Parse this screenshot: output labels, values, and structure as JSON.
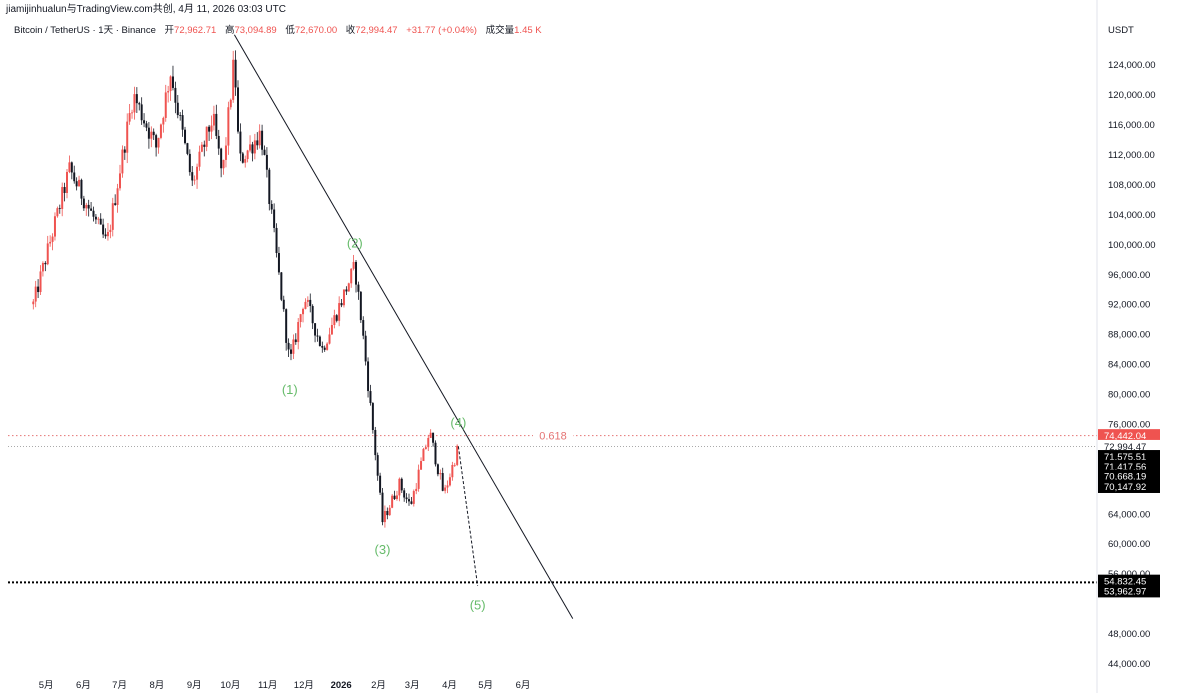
{
  "header": {
    "author": "jiamijinhualun与TradingView.com共创, 4月 11, 2026 03:03 UTC",
    "symbol": "Bitcoin / TetherUS · 1天 · Binance",
    "open_label": "开",
    "open": "72,962.71",
    "high_label": "高",
    "high": "73,094.89",
    "low_label": "低",
    "low": "72,670.00",
    "close_label": "收",
    "close": "72,994.47",
    "change": "+31.77 (+0.04%)",
    "volume_label": "成交量",
    "volume": "1.45 K",
    "currency": "USDT"
  },
  "colors": {
    "up": "#ef5350",
    "down": "#131722",
    "wave_label": "#66bb6a",
    "fib_line": "#e57373",
    "price_badge": "#ef5350",
    "label_badge": "#000000"
  },
  "chart_data": {
    "type": "candlestick",
    "y_axis_ticks": [
      "124,000.00",
      "120,000.00",
      "116,000.00",
      "112,000.00",
      "108,000.00",
      "104,000.00",
      "100,000.00",
      "96,000.00",
      "92,000.00",
      "88,000.00",
      "84,000.00",
      "80,000.00",
      "76,000.00",
      "64,000.00",
      "60,000.00",
      "56,000.00",
      "48,000.00",
      "44,000.00"
    ],
    "x_axis_ticks": [
      "5月",
      "6月",
      "7月",
      "8月",
      "9月",
      "10月",
      "11月",
      "12月",
      "2026",
      "2月",
      "3月",
      "4月",
      "5月",
      "6月"
    ],
    "ylim": [
      42000,
      128000
    ],
    "key_points": [
      {
        "date": "2025-04-22",
        "price": 92000
      },
      {
        "date": "2025-05-22",
        "price": 110000
      },
      {
        "date": "2025-06-22",
        "price": 100000
      },
      {
        "date": "2025-07-14",
        "price": 120000
      },
      {
        "date": "2025-08-02",
        "price": 113000
      },
      {
        "date": "2025-08-14",
        "price": 123000
      },
      {
        "date": "2025-09-01",
        "price": 108000
      },
      {
        "date": "2025-09-18",
        "price": 117000
      },
      {
        "date": "2025-09-26",
        "price": 109000
      },
      {
        "date": "2025-10-06",
        "price": 125000
      },
      {
        "date": "2025-10-10",
        "price": 111000
      },
      {
        "date": "2025-10-28",
        "price": 115000
      },
      {
        "date": "2025-11-08",
        "price": 101000
      },
      {
        "date": "2025-11-21",
        "price": 84000
      },
      {
        "date": "2025-12-03",
        "price": 93000
      },
      {
        "date": "2025-12-18",
        "price": 86000
      },
      {
        "date": "2026-01-14",
        "price": 97000
      },
      {
        "date": "2026-01-20",
        "price": 89000
      },
      {
        "date": "2026-02-06",
        "price": 63000
      },
      {
        "date": "2026-02-20",
        "price": 68000
      },
      {
        "date": "2026-03-01",
        "price": 65000
      },
      {
        "date": "2026-03-17",
        "price": 75000
      },
      {
        "date": "2026-03-29",
        "price": 66500
      },
      {
        "date": "2026-04-10",
        "price": 73000
      }
    ],
    "trendline": [
      {
        "date": "2025-10-06",
        "price": 128000
      },
      {
        "date": "2026-07-14",
        "price": 50000
      }
    ],
    "projection": [
      {
        "date": "2026-04-10",
        "price": 73000
      },
      {
        "date": "2026-04-26",
        "price": 54400
      }
    ],
    "fib_level": {
      "label": "0.618",
      "price": 74442.04
    },
    "wave_labels": [
      {
        "text": "(1)",
        "date": "2025-11-21",
        "price": 80000
      },
      {
        "text": "(2)",
        "date": "2026-01-14",
        "price": 99600
      },
      {
        "text": "(3)",
        "date": "2026-02-06",
        "price": 58600
      },
      {
        "text": "(4)",
        "date": "2026-04-10",
        "price": 75600
      },
      {
        "text": "(5)",
        "date": "2026-04-26",
        "price": 51200
      }
    ],
    "support_level": {
      "price": 54832.45
    },
    "price_badges": [
      {
        "text": "74,442.04",
        "kind": "price_badge",
        "price": 74442.04
      },
      {
        "text": "72,994.47",
        "kind": "current",
        "price": 73000
      },
      {
        "text": "71,575.51",
        "kind": "label_badge",
        "price": 71650
      },
      {
        "text": "71,417.56",
        "kind": "label_badge",
        "price": 70350
      },
      {
        "text": "70,668.19",
        "kind": "label_badge",
        "price": 69050
      },
      {
        "text": "70,147.92",
        "kind": "label_badge",
        "price": 67650
      },
      {
        "text": "54,832.45",
        "kind": "label_badge",
        "price": 55000
      },
      {
        "text": "53,962.97",
        "kind": "label_badge",
        "price": 53700
      }
    ]
  }
}
